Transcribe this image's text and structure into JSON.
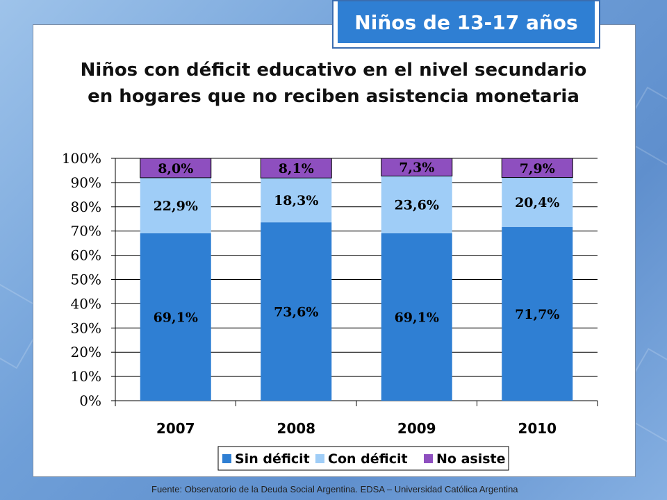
{
  "badge": "Niños de 13-17 años",
  "source": "Fuente: Observatorio de  la Deuda Social Argentina. EDSA – Universidad Católica Argentina",
  "chart_data": {
    "type": "bar",
    "stacked": true,
    "title": "Niños con déficit educativo en el nivel secundario en hogares que no reciben asistencia monetaria",
    "title_lines": [
      "Niños con déficit educativo en el nivel secundario",
      "en hogares que no reciben asistencia monetaria"
    ],
    "categories": [
      "2007",
      "2008",
      "2009",
      "2010"
    ],
    "series": [
      {
        "name": "Sin déficit",
        "values": [
          69.1,
          73.6,
          69.1,
          71.7
        ],
        "labels": [
          "69,1%",
          "73,6%",
          "69,1%",
          "71,7%"
        ],
        "color": "#2f7fd3"
      },
      {
        "name": "Con déficit",
        "values": [
          22.9,
          18.3,
          23.6,
          20.4
        ],
        "labels": [
          "22,9%",
          "18,3%",
          "23,6%",
          "20,4%"
        ],
        "color": "#9fcdf7"
      },
      {
        "name": "No asiste",
        "values": [
          8.0,
          8.1,
          7.3,
          7.9
        ],
        "labels": [
          "8,0%",
          "8,1%",
          "7,3%",
          "7,9%"
        ],
        "color": "#8e4fbf"
      }
    ],
    "ylim": [
      0,
      100
    ],
    "yticks": [
      "0%",
      "10%",
      "20%",
      "30%",
      "40%",
      "50%",
      "60%",
      "70%",
      "80%",
      "90%",
      "100%"
    ],
    "grid": true,
    "legend": "bottom"
  }
}
